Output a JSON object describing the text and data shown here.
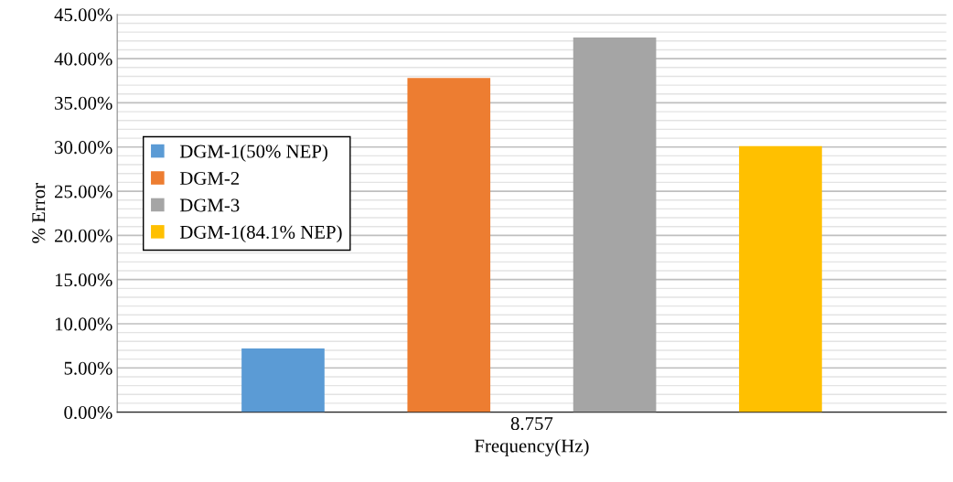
{
  "chart_data": {
    "type": "bar",
    "xlabel": "Frequency(Hz)",
    "ylabel": "% Error",
    "categories": [
      "8.757"
    ],
    "series": [
      {
        "name": "DGM-1(50% NEP)",
        "color": "#5b9bd5",
        "values": [
          7.2
        ]
      },
      {
        "name": "DGM-2",
        "color": "#ed7d31",
        "values": [
          37.8
        ]
      },
      {
        "name": "DGM-3",
        "color": "#a5a5a5",
        "values": [
          42.4
        ]
      },
      {
        "name": "DGM-1(84.1% NEP)",
        "color": "#ffc000",
        "values": [
          30.1
        ]
      }
    ],
    "ylim": [
      0,
      45
    ],
    "yticks": [
      {
        "value": 0,
        "label": "0.00%"
      },
      {
        "value": 5,
        "label": "5.00%"
      },
      {
        "value": 10,
        "label": "10.00%"
      },
      {
        "value": 15,
        "label": "15.00%"
      },
      {
        "value": 20,
        "label": "20.00%"
      },
      {
        "value": 25,
        "label": "25.00%"
      },
      {
        "value": 30,
        "label": "30.00%"
      },
      {
        "value": 35,
        "label": "35.00%"
      },
      {
        "value": 40,
        "label": "40.00%"
      },
      {
        "value": 45,
        "label": "45.00%"
      }
    ],
    "grid": "y",
    "legend": "left"
  }
}
